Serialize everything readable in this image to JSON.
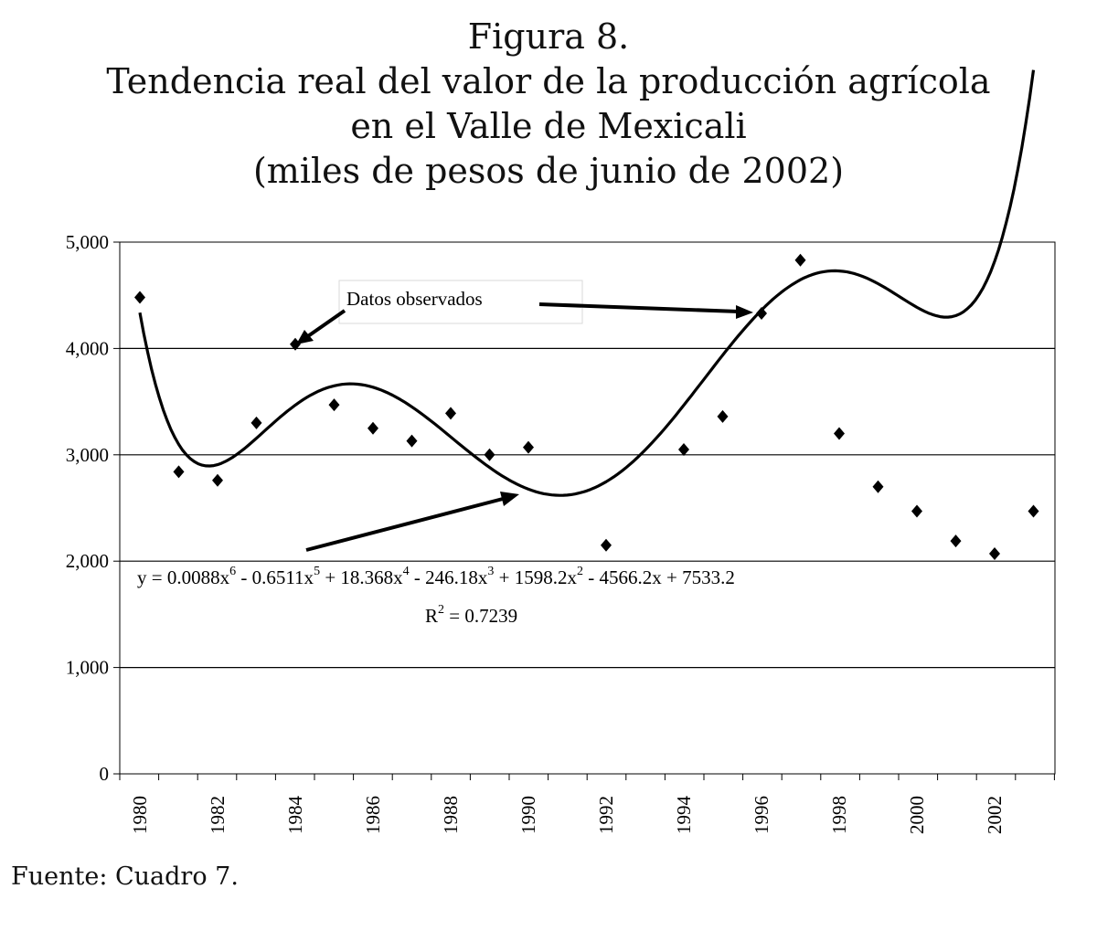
{
  "title_lines": [
    "Figura 8.",
    "Tendencia real del valor de la producción agrícola",
    "en el Valle de Mexicali",
    "(miles de pesos de junio de 2002)"
  ],
  "source": "Fuente: Cuadro 7.",
  "chart_data": {
    "type": "scatter",
    "title": "Figura 8. Tendencia real del valor de la producción agrícola en el Valle de Mexicali",
    "subtitle": "(miles de pesos de junio de 2002)",
    "xlabel": "",
    "ylabel": "",
    "xlim": [
      1980,
      2003
    ],
    "ylim": [
      0,
      5000
    ],
    "grid": true,
    "y_ticks": [
      0,
      1000,
      2000,
      3000,
      4000,
      5000
    ],
    "y_tick_labels": [
      "0",
      "1,000",
      "2,000",
      "3,000",
      "4,000",
      "5,000"
    ],
    "x_tick_labels": [
      "1980",
      "1982",
      "1984",
      "1986",
      "1988",
      "1990",
      "1992",
      "1994",
      "1996",
      "1998",
      "2000",
      "2002"
    ],
    "series": [
      {
        "name": "Datos observados",
        "kind": "points",
        "x": [
          1980,
          1981,
          1982,
          1983,
          1984,
          1985,
          1986,
          1987,
          1988,
          1989,
          1990,
          1992,
          1994,
          1995,
          1996,
          1997,
          1998,
          1999,
          2000,
          2001,
          2002,
          2003
        ],
        "values": [
          4480,
          2840,
          2760,
          3300,
          4040,
          3470,
          3250,
          3130,
          3390,
          3000,
          3070,
          2150,
          3050,
          3360,
          4330,
          4830,
          3200,
          2700,
          2470,
          2190,
          2070,
          2470
        ]
      }
    ],
    "trendline": {
      "kind": "polynomial",
      "color": "#000000",
      "coefficients": [
        0.0088,
        -0.6511,
        18.368,
        -246.18,
        1598.2,
        -4566.2,
        7533.2
      ]
    },
    "annotations": {
      "legend_label": "Datos observados",
      "equation": "y = 0.0088x6 - 0.6511x5 + 18.368x4 - 246.18x3 + 1598.2x2 - 4566.2x + 7533.2",
      "r2": "R2 = 0.7239"
    }
  }
}
